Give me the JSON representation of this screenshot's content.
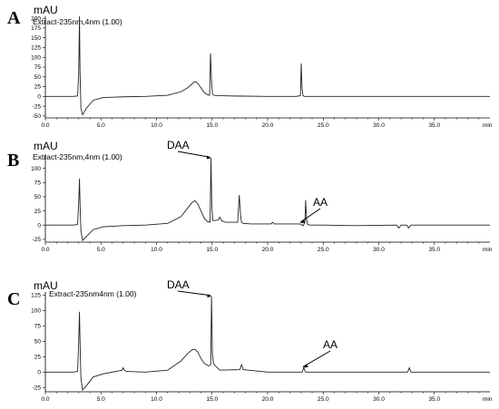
{
  "chart_data": [
    {
      "panel": "A",
      "type": "line",
      "channel": "Extract-235nm,4nm (1.00)",
      "ylabel": "mAU",
      "xunit": "min",
      "xlim": [
        0,
        40
      ],
      "ylim": [
        -55,
        205
      ],
      "yticks": [
        -50,
        -25,
        0,
        25,
        50,
        75,
        100,
        125,
        150,
        175,
        200
      ],
      "xticks": [
        0.0,
        5.0,
        10.0,
        15.0,
        20.0,
        25.0,
        30.0,
        35.0
      ],
      "series": [
        {
          "x": [
            0,
            2.5,
            2.9,
            3.0,
            3.07,
            3.12,
            3.2,
            3.35,
            3.7,
            4.3,
            5.2,
            7,
            9,
            11,
            12.2,
            12.8,
            13.2,
            13.45,
            13.7,
            14.0,
            14.3,
            14.6,
            14.78,
            14.86,
            14.95,
            15.04,
            15.15,
            15.5,
            17,
            20,
            22.6,
            22.95,
            23.02,
            23.1,
            23.18,
            23.3,
            23.6,
            26,
            30,
            35,
            40
          ],
          "y": [
            0,
            0,
            1,
            60,
            205,
            60,
            -30,
            -47,
            -30,
            -10,
            -3,
            -1,
            0,
            3,
            12,
            22,
            32,
            38,
            34,
            22,
            10,
            4,
            3,
            110,
            40,
            6,
            3,
            2,
            1,
            0,
            0,
            2,
            84,
            20,
            2,
            0,
            0,
            0,
            0,
            0,
            0
          ]
        }
      ],
      "annotations": []
    },
    {
      "panel": "B",
      "type": "line",
      "channel": "Extract-235nm,4nm (1.00)",
      "ylabel": "mAU",
      "xunit": "min",
      "xlim": [
        0,
        40
      ],
      "ylim": [
        -30,
        125
      ],
      "yticks": [
        -25,
        0,
        25,
        50,
        75,
        100
      ],
      "xticks": [
        0.0,
        5.0,
        10.0,
        15.0,
        20.0,
        25.0,
        30.0,
        35.0
      ],
      "series": [
        {
          "x": [
            0,
            2.5,
            2.9,
            3.0,
            3.07,
            3.13,
            3.2,
            3.35,
            3.7,
            4.3,
            5.2,
            7,
            9,
            11,
            12.2,
            12.8,
            13.2,
            13.45,
            13.7,
            14.0,
            14.3,
            14.6,
            14.82,
            14.9,
            14.98,
            15.08,
            15.25,
            15.55,
            15.7,
            15.85,
            16.2,
            17.3,
            17.45,
            17.55,
            17.65,
            17.8,
            18.5,
            20.3,
            20.45,
            20.6,
            22.9,
            23.2,
            23.35,
            23.42,
            23.5,
            23.6,
            23.8,
            25,
            28,
            31.6,
            31.8,
            32.0,
            32.5,
            32.7,
            32.9,
            35,
            40
          ],
          "y": [
            0,
            0,
            1,
            40,
            82,
            30,
            -10,
            -27,
            -20,
            -8,
            -3,
            -1,
            0,
            3,
            15,
            30,
            40,
            43,
            38,
            25,
            12,
            6,
            5,
            118,
            30,
            8,
            8,
            9,
            14,
            8,
            5,
            5,
            53,
            20,
            5,
            3,
            2,
            2,
            5,
            2,
            2,
            -1,
            5,
            44,
            10,
            1,
            0,
            0,
            -1,
            0,
            -5,
            0,
            0,
            -5,
            0,
            0,
            0
          ]
        }
      ],
      "annotations": [
        {
          "label": "DAA",
          "x": 14.9,
          "y": 118
        },
        {
          "label": "AA",
          "x": 23.0,
          "y": 3
        }
      ]
    },
    {
      "panel": "C",
      "type": "line",
      "channel": "Extract-235nm4nm (1.00)",
      "ylabel": "mAU",
      "xunit": "min",
      "xlim": [
        0,
        40
      ],
      "ylim": [
        -32,
        130
      ],
      "yticks": [
        -25,
        0,
        25,
        50,
        75,
        100,
        125
      ],
      "xticks": [
        0.0,
        5.0,
        10.0,
        15.0,
        20.0,
        25.0,
        30.0,
        35.0
      ],
      "series": [
        {
          "x": [
            0,
            2.5,
            2.9,
            3.0,
            3.07,
            3.13,
            3.2,
            3.35,
            3.7,
            4.3,
            5.2,
            6.9,
            7.0,
            7.1,
            7.3,
            9,
            11,
            12.2,
            12.8,
            13.2,
            13.45,
            13.7,
            14.0,
            14.3,
            14.7,
            14.88,
            14.95,
            15.03,
            15.13,
            15.3,
            15.7,
            17.5,
            17.65,
            17.8,
            20,
            23.1,
            23.25,
            23.35,
            23.45,
            23.6,
            26,
            32.6,
            32.75,
            32.9,
            35,
            40
          ],
          "y": [
            0,
            0,
            1,
            50,
            98,
            40,
            -10,
            -29,
            -22,
            -8,
            -3,
            3,
            7,
            3,
            1,
            0,
            3,
            18,
            30,
            36,
            37,
            33,
            22,
            14,
            10,
            12,
            123,
            30,
            14,
            10,
            3,
            4,
            12,
            4,
            0,
            0,
            7,
            2,
            0,
            0,
            0,
            0,
            7,
            0,
            0,
            0
          ]
        }
      ],
      "annotations": [
        {
          "label": "DAA",
          "x": 14.95,
          "y": 123
        },
        {
          "label": "AA",
          "x": 23.25,
          "y": 7
        }
      ]
    }
  ]
}
